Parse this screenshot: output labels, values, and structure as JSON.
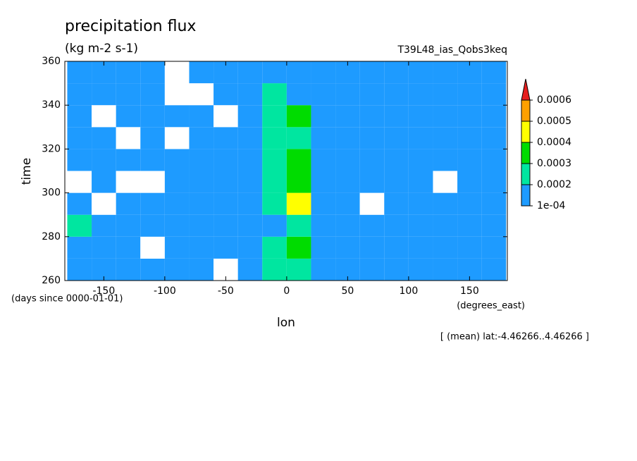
{
  "chart_data": {
    "type": "contour",
    "title": "precipitation flux",
    "units": "(kg m-2 s-1)",
    "experiment": "T39L48_ias_Qobs3keq",
    "x_label": "lon",
    "x_units": "(degrees_east)",
    "y_label": "time",
    "y_units": "(days since 0000-01-01)",
    "note": "[ (mean) lat:-4.46266..4.46266 ]",
    "xlim": [
      -182,
      181
    ],
    "ylim": [
      260,
      360
    ],
    "xticks": [
      -150,
      -100,
      -50,
      0,
      50,
      100,
      150
    ],
    "yticks": [
      260,
      280,
      300,
      320,
      340,
      360
    ],
    "x": [
      -170,
      -150,
      -130,
      -110,
      -90,
      -70,
      -50,
      -30,
      -10,
      10,
      30,
      50,
      70,
      90,
      110,
      130,
      150,
      170
    ],
    "y": [
      265,
      275,
      285,
      295,
      305,
      315,
      325,
      335,
      345,
      355
    ],
    "values": [
      [
        0.00015,
        0.00012,
        0.00016,
        0.00018,
        0.00015,
        0.00012,
        8e-05,
        0.00012,
        0.00022,
        0.00021,
        0.00014,
        0.00015,
        0.00012,
        0.00016,
        0.00018,
        0.00012,
        0.00017,
        0.00019
      ],
      [
        0.00013,
        0.00016,
        0.00012,
        9e-05,
        0.00014,
        0.00016,
        0.00012,
        0.00015,
        0.00024,
        0.00032,
        0.00018,
        0.00013,
        0.00016,
        0.00012,
        0.00015,
        0.00013,
        0.00016,
        0.00012
      ],
      [
        0.00021,
        0.00014,
        0.00017,
        0.00014,
        0.00012,
        0.00018,
        0.00016,
        0.00014,
        0.00019,
        0.00022,
        0.00015,
        0.00012,
        0.00018,
        0.00016,
        0.00011,
        0.00014,
        0.00012,
        0.00015
      ],
      [
        0.00012,
        8e-05,
        0.00011,
        0.00014,
        0.00016,
        0.00013,
        0.00018,
        0.00016,
        0.00026,
        0.00041,
        0.00016,
        0.00012,
        9e-05,
        0.00012,
        0.00014,
        0.00016,
        0.00013,
        0.00011
      ],
      [
        8e-05,
        0.00012,
        9e-05,
        6e-05,
        0.00011,
        0.00014,
        0.00016,
        0.00018,
        0.00022,
        0.00034,
        0.00014,
        0.00011,
        0.00013,
        0.00016,
        0.00012,
        9e-05,
        0.00012,
        0.00014
      ],
      [
        0.00016,
        0.00014,
        0.00017,
        0.00015,
        0.00013,
        0.00016,
        0.00014,
        0.00015,
        0.00027,
        0.00036,
        0.00016,
        0.00014,
        0.00013,
        0.00015,
        0.00014,
        0.00016,
        0.00012,
        0.00015
      ],
      [
        0.00014,
        0.00012,
        9e-05,
        0.00011,
        8e-05,
        0.00013,
        0.00012,
        0.00014,
        0.00023,
        0.00028,
        0.00015,
        0.00013,
        0.00016,
        0.00012,
        0.00011,
        0.00014,
        0.00013,
        0.00012
      ],
      [
        0.00012,
        8e-05,
        0.00014,
        0.00012,
        0.00015,
        0.00011,
        9e-05,
        0.00013,
        0.00025,
        0.00031,
        0.00014,
        0.00016,
        0.00012,
        0.00014,
        0.00016,
        0.00012,
        0.00015,
        0.00013
      ],
      [
        0.00015,
        0.00016,
        0.00012,
        0.00014,
        9e-05,
        7e-05,
        0.00011,
        0.00015,
        0.00021,
        0.00019,
        0.00013,
        0.00012,
        0.00015,
        0.00013,
        0.00011,
        0.00014,
        0.00016,
        0.00014
      ],
      [
        0.00017,
        0.00014,
        0.00013,
        0.00011,
        6e-05,
        0.00012,
        0.00014,
        0.00013,
        0.00018,
        0.00016,
        0.00015,
        0.00013,
        0.00016,
        0.00014,
        0.00015,
        0.00013,
        0.00014,
        0.00016
      ]
    ],
    "levels": [
      0.0001,
      0.0002,
      0.0003,
      0.0004,
      0.0005,
      0.0006
    ],
    "colors": [
      "#1e9bff",
      "#00e6a0",
      "#00dc00",
      "#ffff00",
      "#ffa000",
      "#e61e1e"
    ],
    "colorbar_ticks": [
      {
        "value": 0.0001,
        "label": "1e-04"
      },
      0.0002,
      0.0003,
      0.0004,
      0.0005,
      0.0006
    ]
  }
}
